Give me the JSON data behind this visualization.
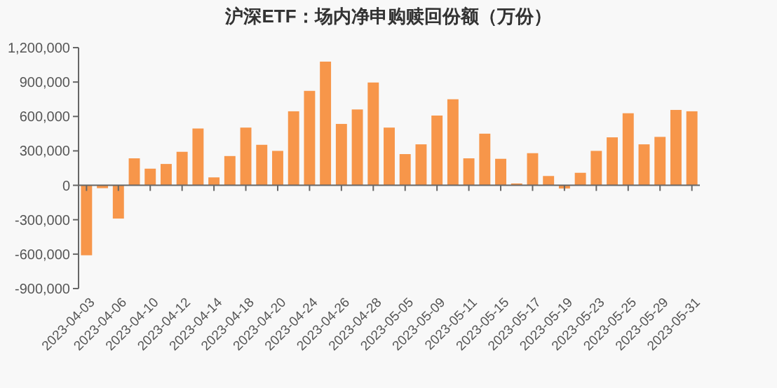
{
  "chart_data": {
    "type": "bar",
    "title": "沪深ETF：场内净申购赎回份额（万份）",
    "categories": [
      "2023-04-03",
      null,
      "2023-04-06",
      null,
      "2023-04-10",
      null,
      "2023-04-12",
      null,
      "2023-04-14",
      null,
      "2023-04-18",
      null,
      "2023-04-20",
      null,
      "2023-04-24",
      null,
      "2023-04-26",
      null,
      "2023-04-28",
      null,
      "2023-05-05",
      null,
      "2023-05-09",
      null,
      "2023-05-11",
      null,
      "2023-05-15",
      null,
      "2023-05-17",
      null,
      "2023-05-19",
      null,
      "2023-05-23",
      null,
      "2023-05-25",
      null,
      "2023-05-29",
      null,
      "2023-05-31"
    ],
    "values": [
      -610000,
      -25000,
      -290000,
      235000,
      145000,
      186000,
      292000,
      495000,
      69000,
      255000,
      503000,
      353000,
      300000,
      645000,
      823000,
      1078000,
      535000,
      661000,
      896000,
      503000,
      272000,
      357000,
      608000,
      750000,
      235000,
      450000,
      231000,
      16000,
      280000,
      81000,
      -28000,
      109000,
      300000,
      418000,
      628000,
      357000,
      422000,
      657000,
      645000
    ],
    "color": "#f7964a",
    "ylim": [
      -900000,
      1200000
    ],
    "yticks": [
      {
        "value": -900000,
        "label": "-900,000"
      },
      {
        "value": -600000,
        "label": "-600,000"
      },
      {
        "value": -300000,
        "label": "-300,000"
      },
      0,
      {
        "value": 300000,
        "label": "300,000"
      },
      {
        "value": 600000,
        "label": "600,000"
      },
      {
        "value": 900000,
        "label": "900,000"
      },
      {
        "value": 1200000,
        "label": "1,200,000"
      }
    ]
  }
}
